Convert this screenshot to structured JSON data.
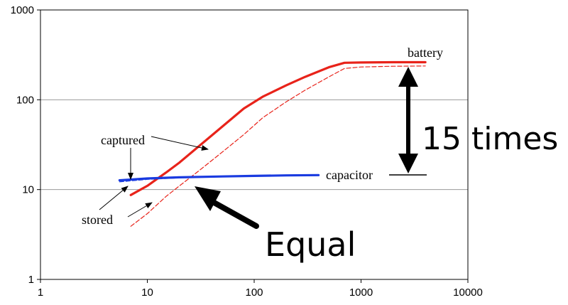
{
  "chart_data": {
    "type": "line",
    "x_scale": "log",
    "y_scale": "log",
    "xlim": [
      1,
      10000
    ],
    "ylim": [
      1,
      1000
    ],
    "x_ticks": [
      "1",
      "10",
      "100",
      "1000",
      "10000"
    ],
    "y_ticks": [
      "1",
      "10",
      "100",
      "1000"
    ],
    "grid": "horizontal",
    "series": [
      {
        "name": "battery",
        "role": "captured",
        "color": "#e8231a",
        "style": "solid",
        "points": [
          [
            7,
            8.7
          ],
          [
            10,
            11
          ],
          [
            15,
            15.5
          ],
          [
            20,
            20
          ],
          [
            30,
            30
          ],
          [
            50,
            50
          ],
          [
            80,
            80
          ],
          [
            120,
            108
          ],
          [
            200,
            145
          ],
          [
            300,
            180
          ],
          [
            500,
            230
          ],
          [
            700,
            258
          ],
          [
            1000,
            260
          ],
          [
            2000,
            262
          ],
          [
            4000,
            262
          ]
        ]
      },
      {
        "name": "battery",
        "role": "stored",
        "color": "#e8231a",
        "style": "dashed",
        "points": [
          [
            7,
            3.9
          ],
          [
            10,
            5.4
          ],
          [
            15,
            8.4
          ],
          [
            20,
            11
          ],
          [
            30,
            16
          ],
          [
            50,
            26
          ],
          [
            80,
            41
          ],
          [
            120,
            63
          ],
          [
            200,
            95
          ],
          [
            300,
            128
          ],
          [
            500,
            180
          ],
          [
            700,
            223
          ],
          [
            1000,
            232
          ],
          [
            2000,
            236
          ],
          [
            4000,
            238
          ]
        ]
      },
      {
        "name": "capacitor",
        "role": "captured",
        "color": "#1a3be0",
        "style": "solid",
        "points": [
          [
            5.5,
            12.7
          ],
          [
            10,
            13.3
          ],
          [
            20,
            13.7
          ],
          [
            50,
            14
          ],
          [
            100,
            14.2
          ],
          [
            200,
            14.4
          ],
          [
            400,
            14.5
          ]
        ]
      },
      {
        "name": "capacitor",
        "role": "stored",
        "color": "#1a3be0",
        "style": "dashed",
        "points": [
          [
            5.5,
            12.2
          ],
          [
            10,
            13
          ],
          [
            20,
            13.5
          ],
          [
            40,
            13.8
          ]
        ]
      }
    ],
    "annotations": {
      "battery": "battery",
      "capacitor": "capacitor",
      "captured": "captured",
      "stored": "stored",
      "ratio": "15 times",
      "equal": "Equal"
    }
  }
}
